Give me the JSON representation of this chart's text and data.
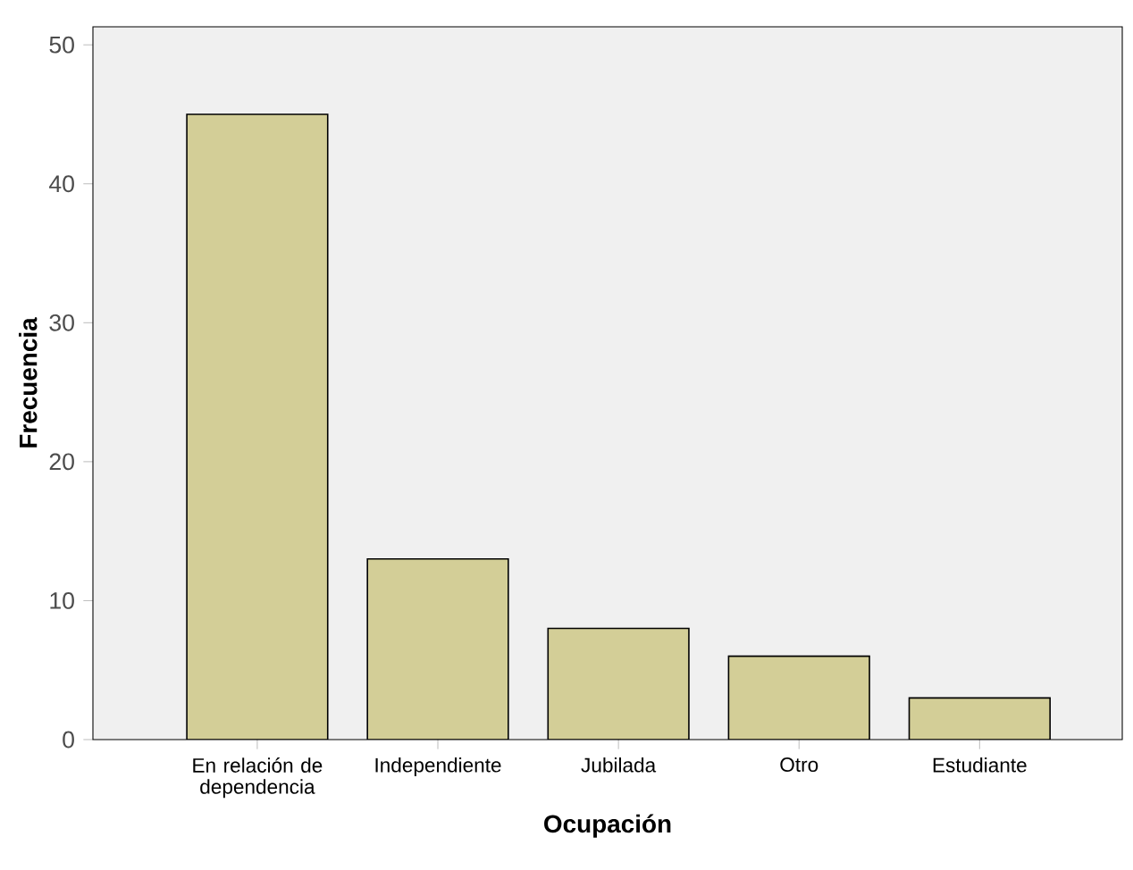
{
  "chart_data": {
    "type": "bar",
    "xlabel": "Ocupación",
    "ylabel": "Frecuencia",
    "categories": [
      "En relación de dependencia",
      "Independiente",
      "Jubilada",
      "Otro",
      "Estudiante"
    ],
    "values": [
      45,
      13,
      8,
      6,
      3
    ],
    "color": "#d3ce97",
    "ylim": [
      0,
      51.3
    ],
    "yticks": [
      0,
      10,
      20,
      30,
      40,
      50
    ],
    "grid": false
  }
}
